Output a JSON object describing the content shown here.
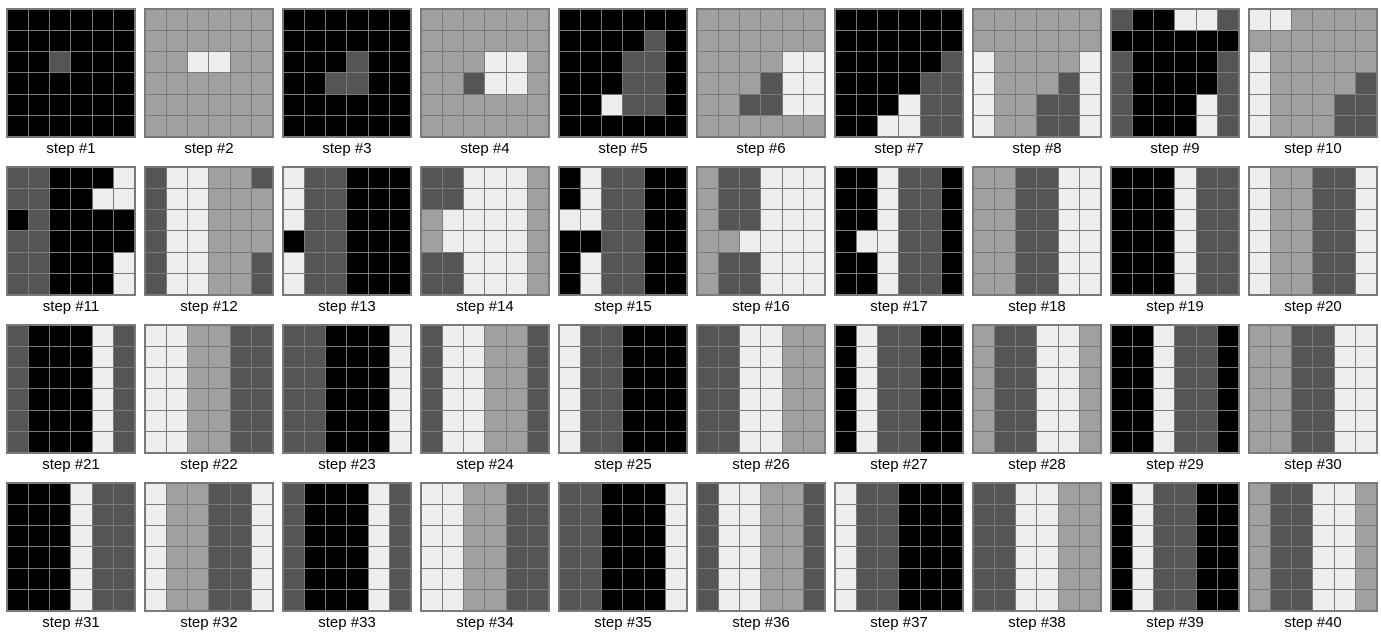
{
  "palette": {
    "0": "#000000",
    "1": "#555555",
    "2": "#a0a0a0",
    "3": "#eeeeee"
  },
  "steps": [
    {
      "label": "step #1",
      "cells": [
        "000000",
        "000000",
        "001000",
        "000000",
        "000000",
        "000000"
      ]
    },
    {
      "label": "step #2",
      "cells": [
        "222222",
        "222222",
        "223322",
        "222222",
        "222222",
        "222222"
      ]
    },
    {
      "label": "step #3",
      "cells": [
        "000000",
        "000000",
        "000100",
        "001100",
        "000000",
        "000000"
      ]
    },
    {
      "label": "step #4",
      "cells": [
        "222222",
        "222222",
        "222332",
        "221332",
        "222222",
        "222222"
      ]
    },
    {
      "label": "step #5",
      "cells": [
        "000000",
        "000010",
        "000110",
        "000110",
        "003110",
        "000000"
      ]
    },
    {
      "label": "step #6",
      "cells": [
        "222222",
        "222222",
        "222233",
        "222133",
        "221133",
        "222222"
      ]
    },
    {
      "label": "step #7",
      "cells": [
        "000000",
        "000000",
        "000001",
        "000011",
        "000311",
        "003311"
      ]
    },
    {
      "label": "step #8",
      "cells": [
        "222222",
        "222222",
        "322223",
        "322213",
        "322113",
        "322113"
      ]
    },
    {
      "label": "step #9",
      "cells": [
        "100331",
        "000000",
        "100001",
        "100001",
        "100031",
        "100031"
      ]
    },
    {
      "label": "step #10",
      "cells": [
        "332222",
        "222222",
        "322222",
        "322221",
        "322211",
        "322211"
      ]
    },
    {
      "label": "step #11",
      "cells": [
        "110003",
        "110033",
        "010000",
        "110000",
        "110003",
        "110003"
      ]
    },
    {
      "label": "step #12",
      "cells": [
        "133221",
        "133222",
        "133222",
        "133222",
        "133221",
        "133221"
      ]
    },
    {
      "label": "step #13",
      "cells": [
        "311000",
        "311000",
        "311000",
        "011000",
        "311000",
        "311000"
      ]
    },
    {
      "label": "step #14",
      "cells": [
        "113332",
        "113332",
        "233332",
        "233332",
        "113332",
        "113332"
      ]
    },
    {
      "label": "step #15",
      "cells": [
        "031100",
        "031100",
        "331100",
        "001100",
        "031100",
        "031100"
      ]
    },
    {
      "label": "step #16",
      "cells": [
        "211333",
        "211333",
        "211333",
        "223333",
        "211333",
        "211333"
      ]
    },
    {
      "label": "step #17",
      "cells": [
        "003110",
        "003110",
        "003110",
        "033110",
        "003110",
        "003110"
      ]
    },
    {
      "label": "step #18",
      "cells": [
        "221133",
        "221133",
        "221133",
        "221133",
        "221133",
        "221133"
      ]
    },
    {
      "label": "step #19",
      "cells": [
        "000311",
        "000311",
        "000311",
        "000311",
        "000311",
        "000311"
      ]
    },
    {
      "label": "step #20",
      "cells": [
        "322113",
        "322113",
        "322113",
        "322113",
        "322113",
        "322113"
      ]
    },
    {
      "label": "step #21",
      "cells": [
        "100031",
        "100031",
        "100031",
        "100031",
        "100031",
        "100031"
      ]
    },
    {
      "label": "step #22",
      "cells": [
        "332211",
        "332211",
        "332211",
        "332211",
        "332211",
        "332211"
      ]
    },
    {
      "label": "step #23",
      "cells": [
        "110003",
        "110003",
        "110003",
        "110003",
        "110003",
        "110003"
      ]
    },
    {
      "label": "step #24",
      "cells": [
        "133221",
        "133221",
        "133221",
        "133221",
        "133221",
        "133221"
      ]
    },
    {
      "label": "step #25",
      "cells": [
        "311000",
        "311000",
        "311000",
        "311000",
        "311000",
        "311000"
      ]
    },
    {
      "label": "step #26",
      "cells": [
        "113322",
        "113322",
        "113322",
        "113322",
        "113322",
        "113322"
      ]
    },
    {
      "label": "step #27",
      "cells": [
        "031100",
        "031100",
        "031100",
        "031100",
        "031100",
        "031100"
      ]
    },
    {
      "label": "step #28",
      "cells": [
        "211332",
        "211332",
        "211332",
        "211332",
        "211332",
        "211332"
      ]
    },
    {
      "label": "step #29",
      "cells": [
        "003110",
        "003110",
        "003110",
        "003110",
        "003110",
        "003110"
      ]
    },
    {
      "label": "step #30",
      "cells": [
        "221133",
        "221133",
        "221133",
        "221133",
        "221133",
        "221133"
      ]
    },
    {
      "label": "step #31",
      "cells": [
        "000311",
        "000311",
        "000311",
        "000311",
        "000311",
        "000311"
      ]
    },
    {
      "label": "step #32",
      "cells": [
        "322113",
        "322113",
        "322113",
        "322113",
        "322113",
        "322113"
      ]
    },
    {
      "label": "step #33",
      "cells": [
        "100031",
        "100031",
        "100031",
        "100031",
        "100031",
        "100031"
      ]
    },
    {
      "label": "step #34",
      "cells": [
        "332211",
        "332211",
        "332211",
        "332211",
        "332211",
        "332211"
      ]
    },
    {
      "label": "step #35",
      "cells": [
        "110003",
        "110003",
        "110003",
        "110003",
        "110003",
        "110003"
      ]
    },
    {
      "label": "step #36",
      "cells": [
        "133221",
        "133221",
        "133221",
        "133221",
        "133221",
        "133221"
      ]
    },
    {
      "label": "step #37",
      "cells": [
        "311000",
        "311000",
        "311000",
        "311000",
        "311000",
        "311000"
      ]
    },
    {
      "label": "step #38",
      "cells": [
        "113322",
        "113322",
        "113322",
        "113322",
        "113322",
        "113322"
      ]
    },
    {
      "label": "step #39",
      "cells": [
        "031100",
        "031100",
        "031100",
        "031100",
        "031100",
        "031100"
      ]
    },
    {
      "label": "step #40",
      "cells": [
        "211332",
        "211332",
        "211332",
        "211332",
        "211332",
        "211332"
      ]
    }
  ]
}
